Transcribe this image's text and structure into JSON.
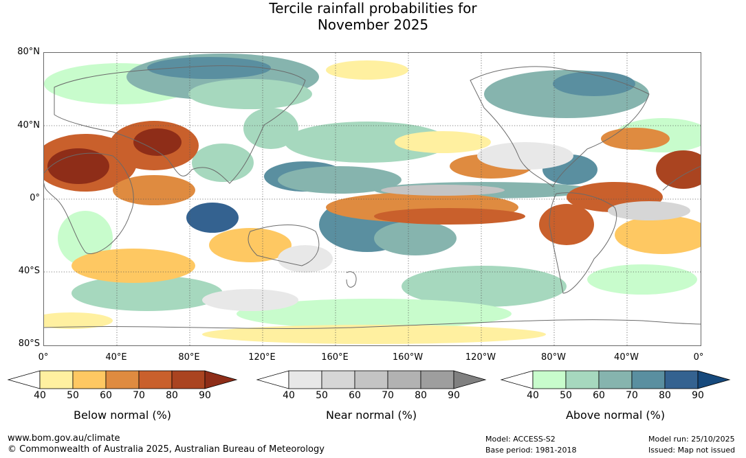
{
  "title_line1": "Tercile rainfall probabilities for",
  "title_line2": "November 2025",
  "lat_labels": [
    "80°N",
    "40°N",
    "0°",
    "40°S",
    "80°S"
  ],
  "lon_labels": [
    "0°",
    "40°E",
    "80°E",
    "120°E",
    "160°E",
    "160°W",
    "120°W",
    "80°W",
    "40°W",
    "0°"
  ],
  "legends": [
    {
      "name": "Below normal (%)",
      "labels": [
        "40",
        "50",
        "60",
        "70",
        "80",
        "90"
      ],
      "colors": [
        "#ffffff",
        "#fff0a0",
        "#fec862",
        "#df8b40",
        "#c9602c",
        "#aa4420",
        "#8e2d18"
      ]
    },
    {
      "name": "Near normal (%)",
      "labels": [
        "40",
        "50",
        "60",
        "70",
        "80",
        "90"
      ],
      "colors": [
        "#ffffff",
        "#e8e8e8",
        "#d6d6d6",
        "#c4c4c4",
        "#b2b2b2",
        "#9e9e9e",
        "#808080"
      ]
    },
    {
      "name": "Above normal (%)",
      "labels": [
        "40",
        "50",
        "60",
        "70",
        "80",
        "90"
      ],
      "colors": [
        "#ffffff",
        "#c8fccc",
        "#a6d8be",
        "#86b4ae",
        "#5a8fa0",
        "#346290",
        "#16497c"
      ]
    }
  ],
  "footer": {
    "url": "www.bom.gov.au/climate",
    "copyright": "© Commonwealth of Australia 2025, Australian Bureau of Meteorology",
    "model": "Model: ACCESS-S2",
    "base_period": "Base period: 1981-2018",
    "model_run": "Model run: 25/10/2025",
    "issued": "Issued: Map not issued"
  }
}
